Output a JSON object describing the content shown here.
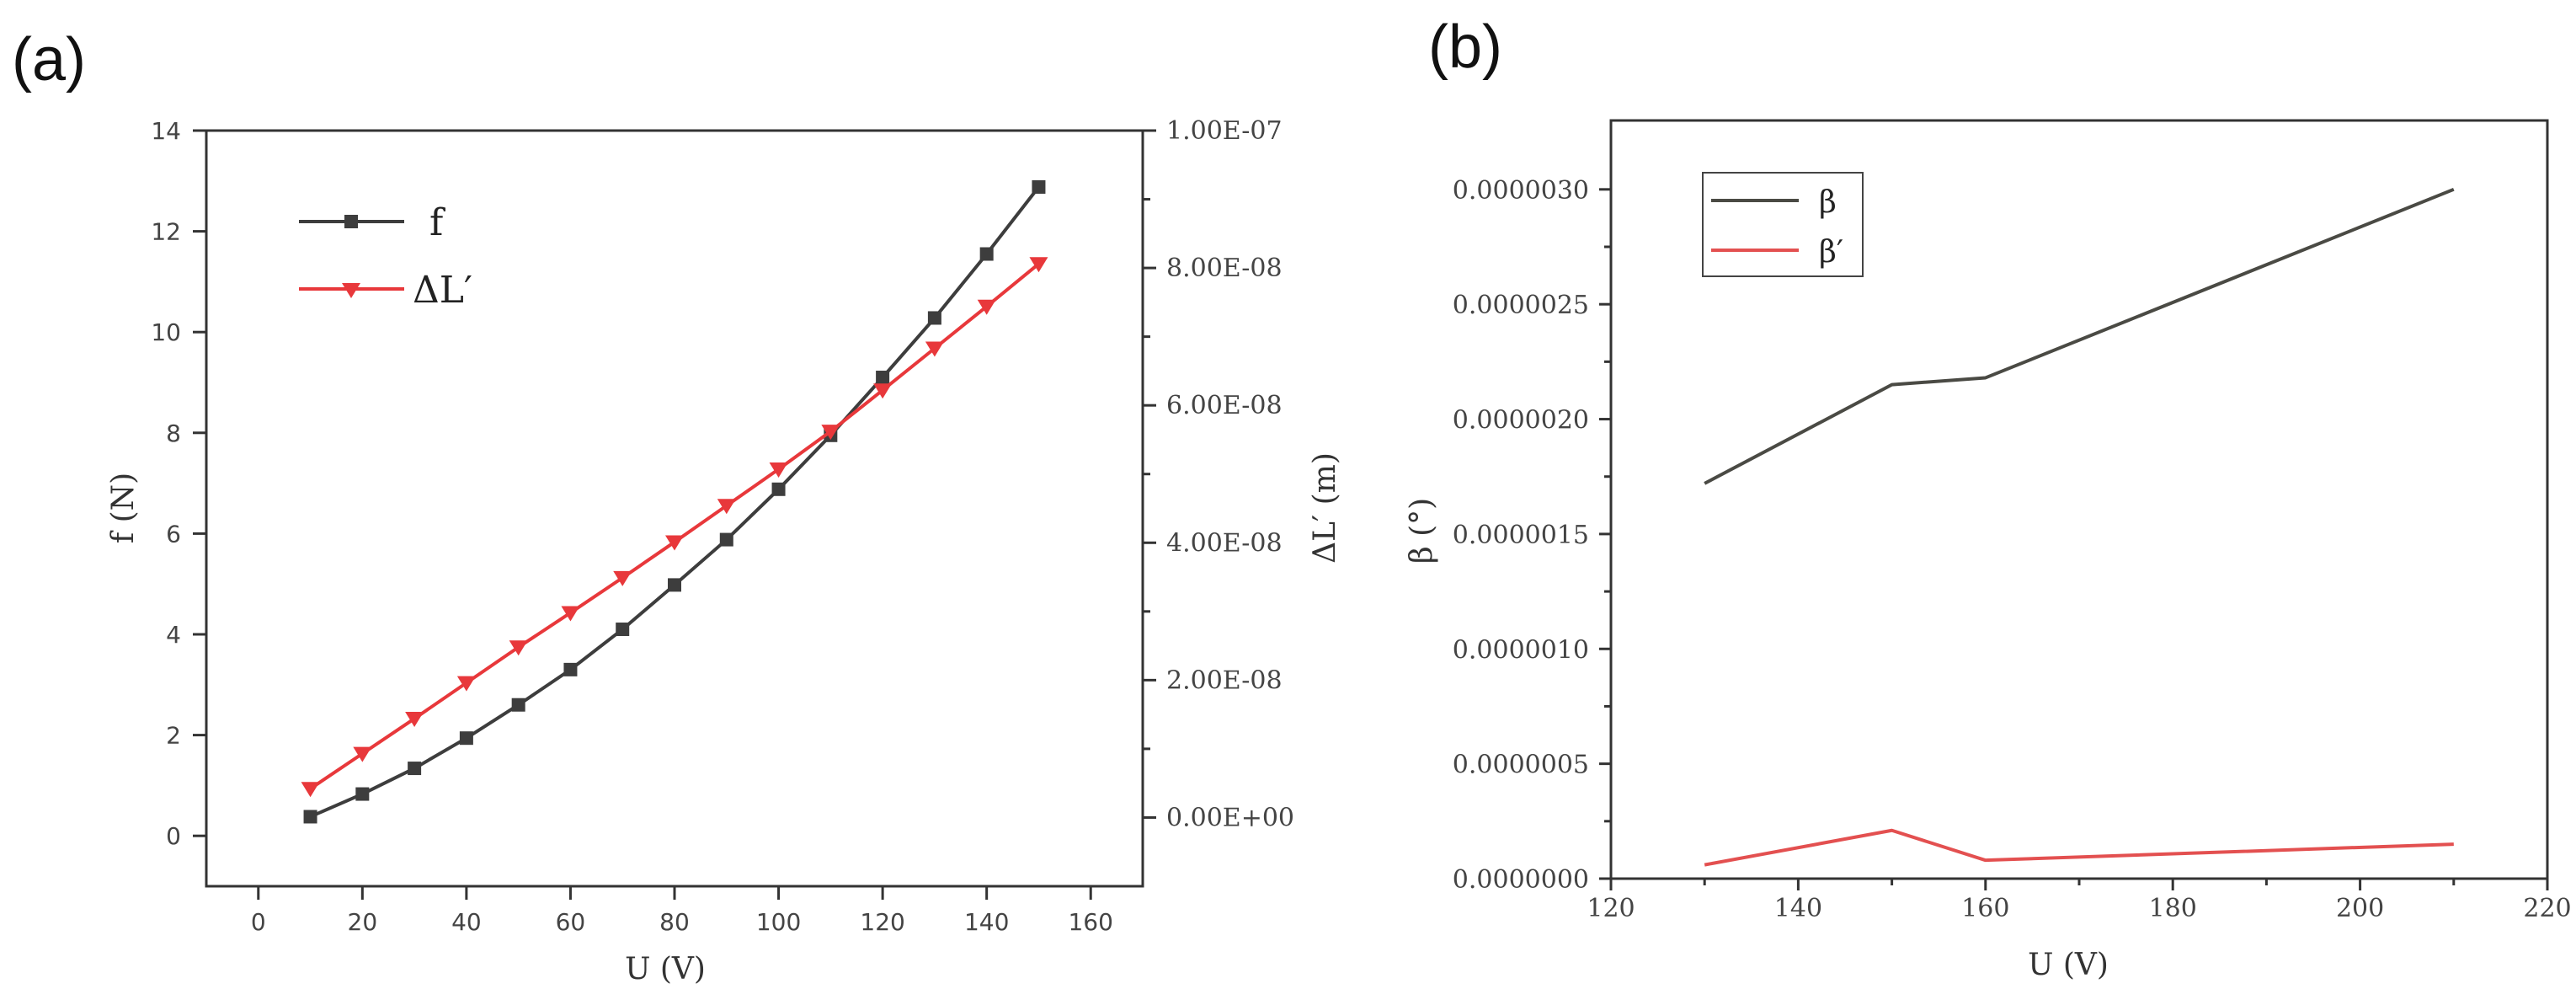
{
  "chart_data": [
    {
      "panel_label": "(a)",
      "type": "line",
      "xlabel": "U (V)",
      "ylabel": "f (N)",
      "y2label": "ΔL′ (m)",
      "xlim": [
        -10,
        170
      ],
      "ylim": [
        -1,
        14
      ],
      "y2lim": [
        -1e-08,
        1e-07
      ],
      "xticks": [
        0,
        20,
        40,
        60,
        80,
        100,
        120,
        140,
        160
      ],
      "xtick_labels": [
        "0",
        "20",
        "40",
        "60",
        "80",
        "100",
        "120",
        "140",
        "160"
      ],
      "yticks": [
        0,
        2,
        4,
        6,
        8,
        10,
        12,
        14
      ],
      "ytick_labels": [
        "0",
        "2",
        "4",
        "6",
        "8",
        "10",
        "12",
        "14"
      ],
      "y2ticks": [
        0,
        2e-08,
        4e-08,
        6e-08,
        8e-08,
        1e-07
      ],
      "y2tick_labels": [
        "0.00E+00",
        "2.00E-08",
        "4.00E-08",
        "6.00E-08",
        "8.00E-08",
        "1.00E-07"
      ],
      "legend": [
        "f",
        "ΔL′"
      ],
      "series": [
        {
          "name": "f",
          "color": "#3d3d3d",
          "marker": "square",
          "axis": "left",
          "x": [
            10,
            20,
            30,
            40,
            50,
            60,
            70,
            80,
            90,
            100,
            110,
            120,
            130,
            140,
            150
          ],
          "y": [
            0.38,
            0.83,
            1.34,
            1.94,
            2.6,
            3.3,
            4.1,
            4.98,
            5.88,
            6.88,
            7.95,
            9.1,
            10.28,
            11.55,
            12.88
          ]
        },
        {
          "name": "ΔL′",
          "color": "#e8383b",
          "marker": "triangle-down",
          "axis": "right",
          "x": [
            10,
            20,
            30,
            40,
            50,
            60,
            70,
            80,
            90,
            100,
            110,
            120,
            130,
            140,
            150
          ],
          "y": [
            4.2e-09,
            9.3e-09,
            1.44e-08,
            1.96e-08,
            2.48e-08,
            2.98e-08,
            3.49e-08,
            4.01e-08,
            4.54e-08,
            5.07e-08,
            5.62e-08,
            6.22e-08,
            6.83e-08,
            7.44e-08,
            8.06e-08
          ]
        }
      ]
    },
    {
      "panel_label": "(b)",
      "type": "line",
      "xlabel": "U (V)",
      "ylabel": "β (°)",
      "xlim": [
        120,
        220
      ],
      "ylim": [
        0,
        3.3e-06
      ],
      "xticks": [
        120,
        140,
        160,
        180,
        200,
        220
      ],
      "xtick_labels": [
        "120",
        "140",
        "160",
        "180",
        "200",
        "220"
      ],
      "yticks": [
        0,
        5e-07,
        1e-06,
        1.5e-06,
        2e-06,
        2.5e-06,
        3e-06
      ],
      "ytick_labels": [
        "0.0000000",
        "0.0000005",
        "0.0000010",
        "0.0000015",
        "0.0000020",
        "0.0000025",
        "0.0000030"
      ],
      "legend": [
        "β",
        "β′"
      ],
      "series": [
        {
          "name": "β",
          "color": "#4a4a44",
          "x": [
            130,
            150,
            160,
            210
          ],
          "y": [
            1.72e-06,
            2.15e-06,
            2.18e-06,
            3e-06
          ]
        },
        {
          "name": "β′",
          "color": "#e35050",
          "x": [
            130,
            150,
            160,
            210
          ],
          "y": [
            6e-08,
            2.1e-07,
            8e-08,
            1.5e-07
          ]
        }
      ]
    }
  ]
}
